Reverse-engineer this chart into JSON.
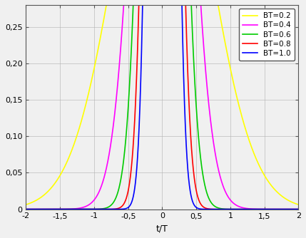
{
  "BT_values": [
    0.2,
    0.4,
    0.6,
    0.8,
    1.0
  ],
  "colors": [
    "#ffff00",
    "#ff00ff",
    "#00cc00",
    "#ff0000",
    "#0000ff"
  ],
  "labels": [
    "BT=0.2",
    "BT=0.4",
    "BT=0.6",
    "BT=0.8",
    "BT=1.0"
  ],
  "xlim": [
    -2,
    2
  ],
  "ylim": [
    0,
    0.28
  ],
  "xlabel": "t/T",
  "yticks": [
    0,
    0.05,
    0.1,
    0.15,
    0.2,
    0.25
  ],
  "ytick_labels": [
    "0",
    "0,05",
    "0,10",
    "0,15",
    "0,20",
    "0,25"
  ],
  "xticks": [
    -2,
    -1.5,
    -1,
    -0.5,
    0,
    0.5,
    1,
    1.5,
    2
  ],
  "xtick_labels": [
    "-2",
    "-1,5",
    "-1",
    "-0,5",
    "0",
    "0,5",
    "1",
    "1,5",
    "2"
  ],
  "legend_loc": "upper right",
  "background_color": "#f0f0f0",
  "line_width": 1.2
}
